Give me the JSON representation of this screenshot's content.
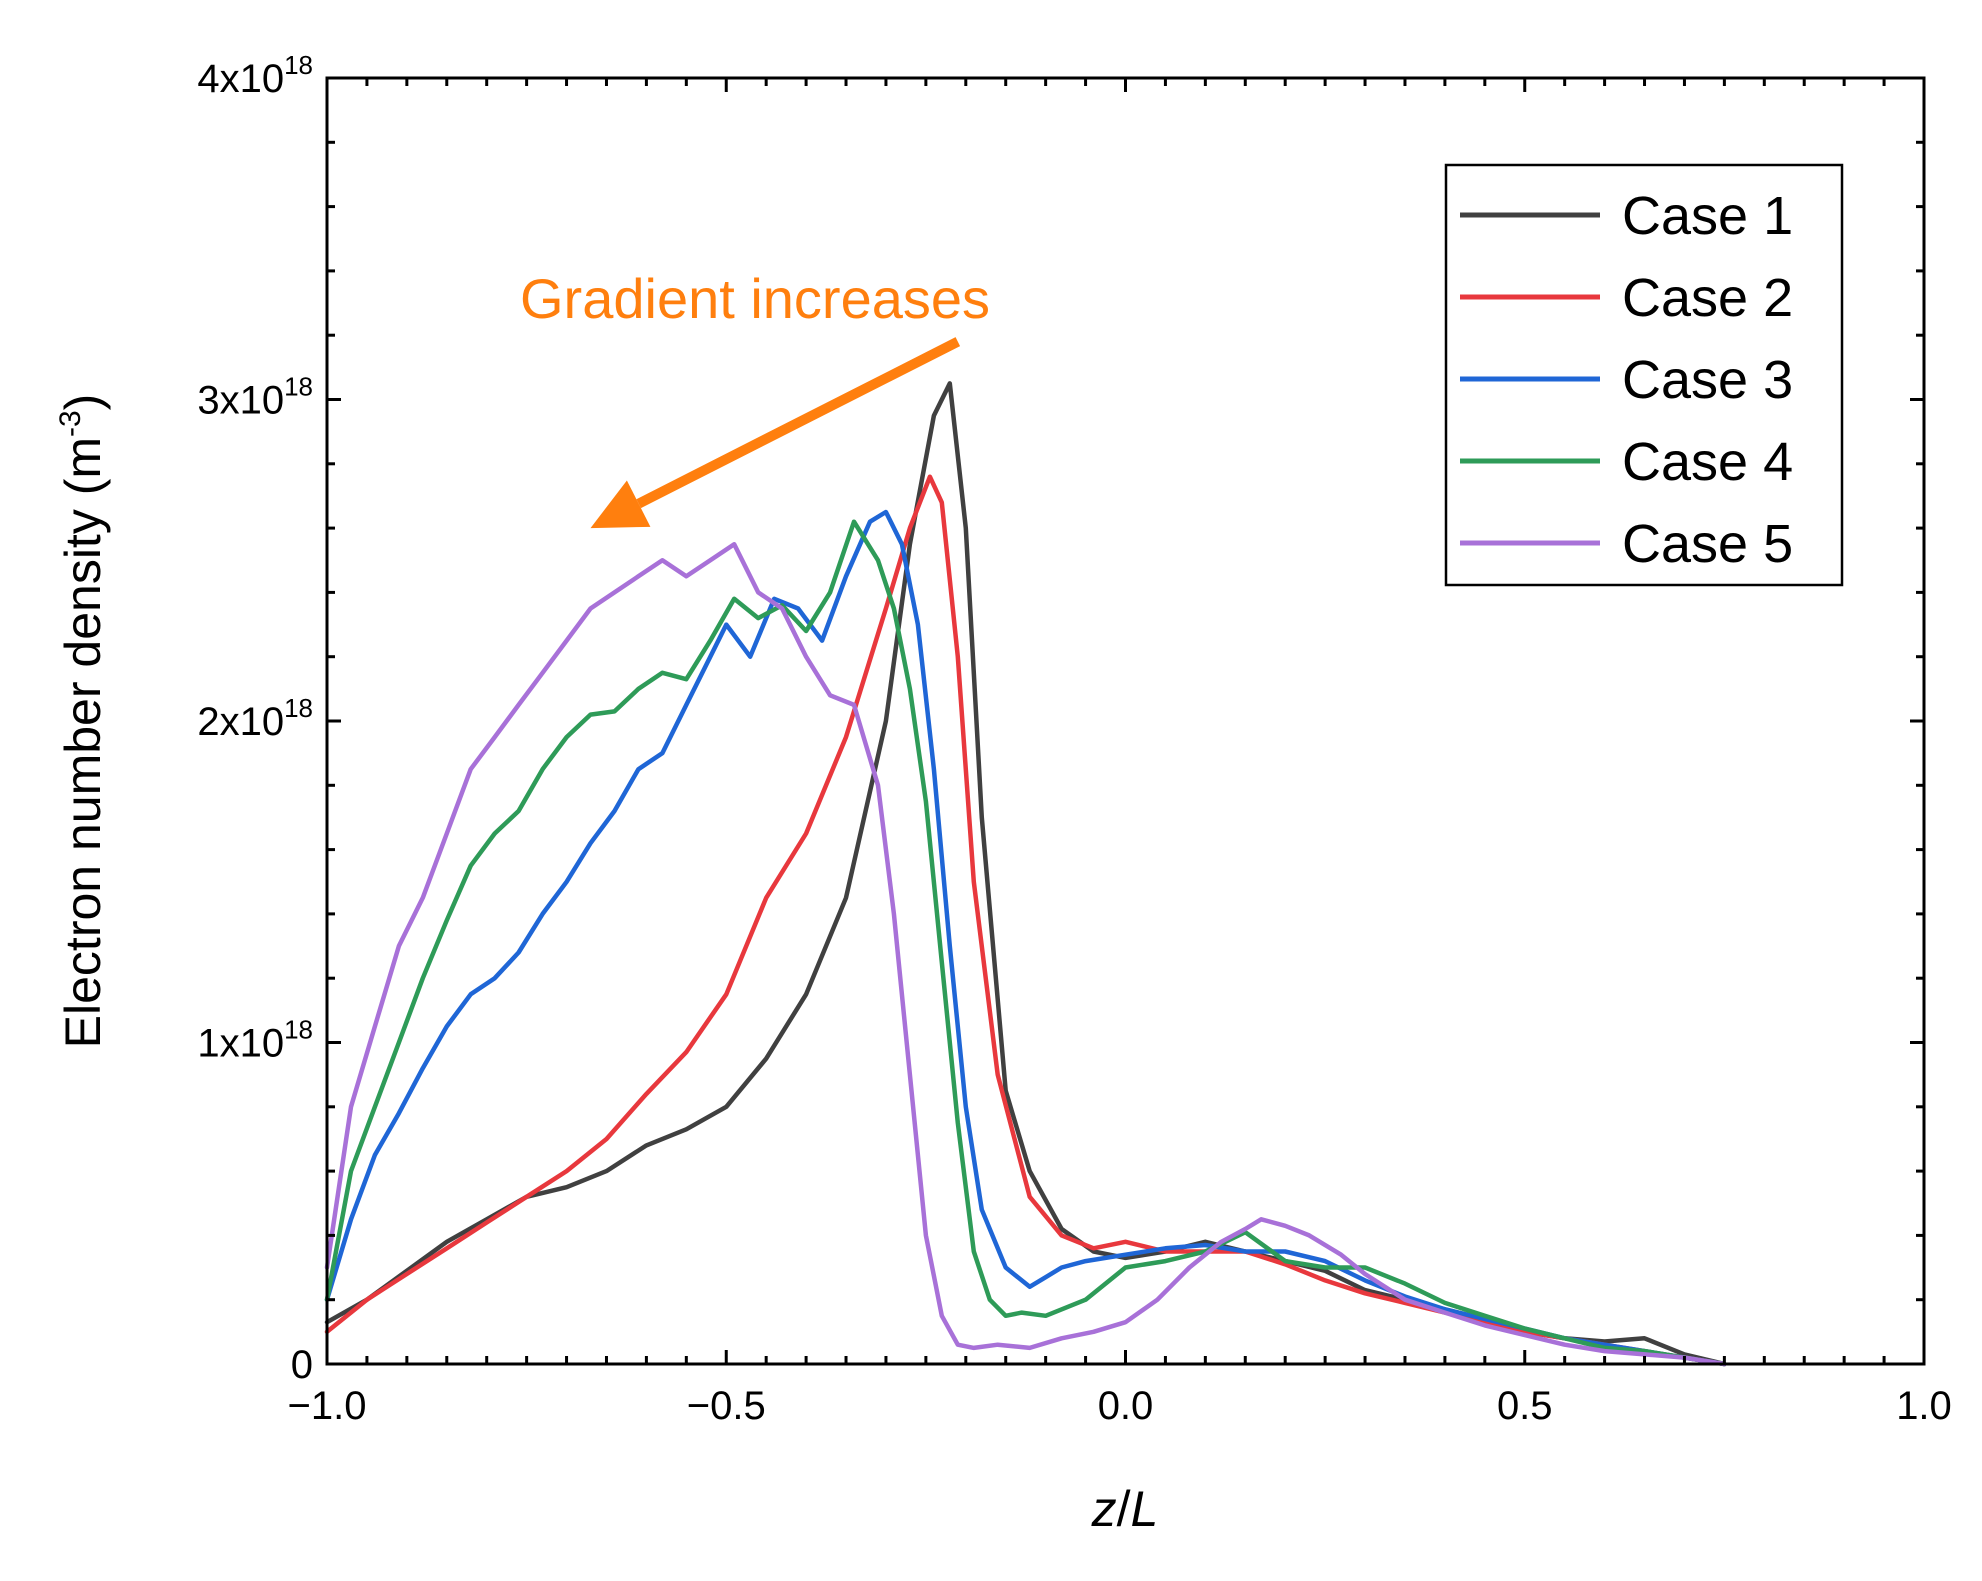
{
  "chart_data": {
    "type": "line",
    "title": "",
    "xlabel": "z/L",
    "xlabel_parts": {
      "var": "z",
      "sep": "/",
      "den": "L"
    },
    "ylabel": "Electron number density (m-3)",
    "ylabel_parts": {
      "main": "Electron number density (m",
      "sup": "-3",
      "close": ")"
    },
    "xlim": [
      -1.0,
      1.0
    ],
    "ylim": [
      0,
      4e+18
    ],
    "x_ticks": [
      {
        "value": -1.0,
        "label": "−1.0"
      },
      {
        "value": -0.5,
        "label": "−0.5"
      },
      {
        "value": 0.0,
        "label": "0.0"
      },
      {
        "value": 0.5,
        "label": "0.5"
      },
      {
        "value": 1.0,
        "label": "1.0"
      }
    ],
    "y_ticks": [
      {
        "value": 0,
        "base": "0",
        "exp": ""
      },
      {
        "value": 1e+18,
        "base": "1x10",
        "exp": "18"
      },
      {
        "value": 2e+18,
        "base": "2x10",
        "exp": "18"
      },
      {
        "value": 3e+18,
        "base": "3x10",
        "exp": "18"
      },
      {
        "value": 4e+18,
        "base": "4x10",
        "exp": "18"
      }
    ],
    "grid": false,
    "legend_position": "top-right",
    "annotation": {
      "text": "Gradient increases",
      "arrow_from": [
        -0.21,
        3.18e+18
      ],
      "arrow_to": [
        -0.67,
        2.6e+18
      ],
      "color": "#FF7F0E"
    },
    "series": [
      {
        "name": "Case 1",
        "color": "#404040",
        "x": [
          -1.0,
          -0.95,
          -0.9,
          -0.85,
          -0.8,
          -0.75,
          -0.7,
          -0.65,
          -0.6,
          -0.55,
          -0.5,
          -0.45,
          -0.4,
          -0.35,
          -0.3,
          -0.27,
          -0.24,
          -0.22,
          -0.2,
          -0.18,
          -0.15,
          -0.12,
          -0.08,
          -0.04,
          0.0,
          0.05,
          0.1,
          0.15,
          0.2,
          0.25,
          0.3,
          0.35,
          0.4,
          0.45,
          0.5,
          0.55,
          0.6,
          0.65,
          0.7,
          0.75
        ],
        "y": [
          1.3e+17,
          2e+17,
          2.9e+17,
          3.8e+17,
          4.5e+17,
          5.2e+17,
          5.5e+17,
          6e+17,
          6.8e+17,
          7.3e+17,
          8e+17,
          9.5e+17,
          1.15e+18,
          1.45e+18,
          2e+18,
          2.55e+18,
          2.95e+18,
          3.05e+18,
          2.6e+18,
          1.7e+18,
          8.5e+17,
          6e+17,
          4.2e+17,
          3.5e+17,
          3.3e+17,
          3.5e+17,
          3.8e+17,
          3.5e+17,
          3.2e+17,
          2.9e+17,
          2.3e+17,
          2e+17,
          1.7e+17,
          1.4e+17,
          1e+17,
          8e+16,
          7e+16,
          8e+16,
          3e+16,
          0
        ]
      },
      {
        "name": "Case 2",
        "color": "#E8383D",
        "x": [
          -1.0,
          -0.95,
          -0.9,
          -0.85,
          -0.8,
          -0.75,
          -0.7,
          -0.65,
          -0.6,
          -0.55,
          -0.5,
          -0.45,
          -0.4,
          -0.35,
          -0.3,
          -0.27,
          -0.245,
          -0.23,
          -0.21,
          -0.19,
          -0.16,
          -0.12,
          -0.08,
          -0.04,
          0.0,
          0.05,
          0.1,
          0.15,
          0.2,
          0.25,
          0.3,
          0.35,
          0.4,
          0.45,
          0.5,
          0.55,
          0.6,
          0.65,
          0.7,
          0.75
        ],
        "y": [
          1e+17,
          2e+17,
          2.8e+17,
          3.6e+17,
          4.4e+17,
          5.2e+17,
          6e+17,
          7e+17,
          8.4e+17,
          9.7e+17,
          1.15e+18,
          1.45e+18,
          1.65e+18,
          1.95e+18,
          2.35e+18,
          2.6e+18,
          2.76e+18,
          2.68e+18,
          2.2e+18,
          1.5e+18,
          9e+17,
          5.2e+17,
          4e+17,
          3.6e+17,
          3.8e+17,
          3.5e+17,
          3.5e+17,
          3.5e+17,
          3.1e+17,
          2.6e+17,
          2.2e+17,
          1.9e+17,
          1.6e+17,
          1.3e+17,
          1e+17,
          8e+16,
          6e+16,
          4e+16,
          2e+16,
          0
        ]
      },
      {
        "name": "Case 3",
        "color": "#1F66D6",
        "x": [
          -1.0,
          -0.97,
          -0.94,
          -0.91,
          -0.88,
          -0.85,
          -0.82,
          -0.79,
          -0.76,
          -0.73,
          -0.7,
          -0.67,
          -0.64,
          -0.61,
          -0.58,
          -0.55,
          -0.52,
          -0.5,
          -0.47,
          -0.44,
          -0.41,
          -0.38,
          -0.35,
          -0.32,
          -0.3,
          -0.28,
          -0.26,
          -0.24,
          -0.22,
          -0.2,
          -0.18,
          -0.15,
          -0.12,
          -0.1,
          -0.08,
          -0.05,
          0.0,
          0.05,
          0.1,
          0.15,
          0.2,
          0.25,
          0.3,
          0.35,
          0.4,
          0.45,
          0.5,
          0.55,
          0.6,
          0.65,
          0.7,
          0.75
        ],
        "y": [
          2e+17,
          4.5e+17,
          6.5e+17,
          7.8e+17,
          9.2e+17,
          1.05e+18,
          1.15e+18,
          1.2e+18,
          1.28e+18,
          1.4e+18,
          1.5e+18,
          1.62e+18,
          1.72e+18,
          1.85e+18,
          1.9e+18,
          2.05e+18,
          2.2e+18,
          2.3e+18,
          2.2e+18,
          2.38e+18,
          2.35e+18,
          2.25e+18,
          2.45e+18,
          2.62e+18,
          2.65e+18,
          2.55e+18,
          2.3e+18,
          1.85e+18,
          1.3e+18,
          8e+17,
          4.8e+17,
          3e+17,
          2.4e+17,
          2.7e+17,
          3e+17,
          3.2e+17,
          3.4e+17,
          3.6e+17,
          3.7e+17,
          3.5e+17,
          3.5e+17,
          3.2e+17,
          2.6e+17,
          2.1e+17,
          1.7e+17,
          1.4e+17,
          1.1e+17,
          8e+16,
          6e+16,
          4e+16,
          2e+16,
          0
        ]
      },
      {
        "name": "Case 4",
        "color": "#2E9B58",
        "x": [
          -1.0,
          -0.97,
          -0.94,
          -0.91,
          -0.88,
          -0.85,
          -0.82,
          -0.79,
          -0.76,
          -0.73,
          -0.7,
          -0.67,
          -0.64,
          -0.61,
          -0.58,
          -0.55,
          -0.52,
          -0.49,
          -0.46,
          -0.43,
          -0.4,
          -0.37,
          -0.34,
          -0.31,
          -0.29,
          -0.27,
          -0.25,
          -0.23,
          -0.21,
          -0.19,
          -0.17,
          -0.15,
          -0.13,
          -0.1,
          -0.05,
          0.0,
          0.05,
          0.1,
          0.15,
          0.2,
          0.25,
          0.3,
          0.35,
          0.4,
          0.45,
          0.5,
          0.55,
          0.6,
          0.65,
          0.7,
          0.75
        ],
        "y": [
          2e+17,
          6e+17,
          8e+17,
          1e+18,
          1.2e+18,
          1.38e+18,
          1.55e+18,
          1.65e+18,
          1.72e+18,
          1.85e+18,
          1.95e+18,
          2.02e+18,
          2.03e+18,
          2.1e+18,
          2.15e+18,
          2.13e+18,
          2.25e+18,
          2.38e+18,
          2.32e+18,
          2.36e+18,
          2.28e+18,
          2.4e+18,
          2.62e+18,
          2.5e+18,
          2.35e+18,
          2.1e+18,
          1.75e+18,
          1.25e+18,
          7.5e+17,
          3.5e+17,
          2e+17,
          1.5e+17,
          1.6e+17,
          1.5e+17,
          2e+17,
          3e+17,
          3.2e+17,
          3.5e+17,
          4.1e+17,
          3.2e+17,
          3e+17,
          3e+17,
          2.5e+17,
          1.9e+17,
          1.5e+17,
          1.1e+17,
          8e+16,
          5e+16,
          4e+16,
          2e+16,
          0
        ]
      },
      {
        "name": "Case 5",
        "color": "#A871D8",
        "x": [
          -1.0,
          -0.97,
          -0.94,
          -0.91,
          -0.88,
          -0.85,
          -0.82,
          -0.79,
          -0.76,
          -0.73,
          -0.7,
          -0.67,
          -0.64,
          -0.61,
          -0.58,
          -0.55,
          -0.52,
          -0.49,
          -0.46,
          -0.43,
          -0.4,
          -0.37,
          -0.34,
          -0.31,
          -0.29,
          -0.27,
          -0.25,
          -0.23,
          -0.21,
          -0.19,
          -0.16,
          -0.12,
          -0.08,
          -0.04,
          0.0,
          0.04,
          0.08,
          0.12,
          0.15,
          0.17,
          0.2,
          0.23,
          0.27,
          0.3,
          0.35,
          0.4,
          0.45,
          0.5,
          0.55,
          0.6,
          0.65,
          0.7,
          0.75
        ],
        "y": [
          3e+17,
          8e+17,
          1.05e+18,
          1.3e+18,
          1.45e+18,
          1.65e+18,
          1.85e+18,
          1.95e+18,
          2.05e+18,
          2.15e+18,
          2.25e+18,
          2.35e+18,
          2.4e+18,
          2.45e+18,
          2.5e+18,
          2.45e+18,
          2.5e+18,
          2.55e+18,
          2.4e+18,
          2.35e+18,
          2.2e+18,
          2.08e+18,
          2.05e+18,
          1.8e+18,
          1.4e+18,
          9e+17,
          4e+17,
          1.5e+17,
          6e+16,
          5e+16,
          6e+16,
          5e+16,
          8e+16,
          1e+17,
          1.3e+17,
          2e+17,
          3e+17,
          3.8e+17,
          4.2e+17,
          4.5e+17,
          4.3e+17,
          4e+17,
          3.4e+17,
          2.8e+17,
          2e+17,
          1.6e+17,
          1.2e+17,
          9e+16,
          6e+16,
          4e+16,
          3e+16,
          2e+16,
          0
        ]
      }
    ]
  }
}
